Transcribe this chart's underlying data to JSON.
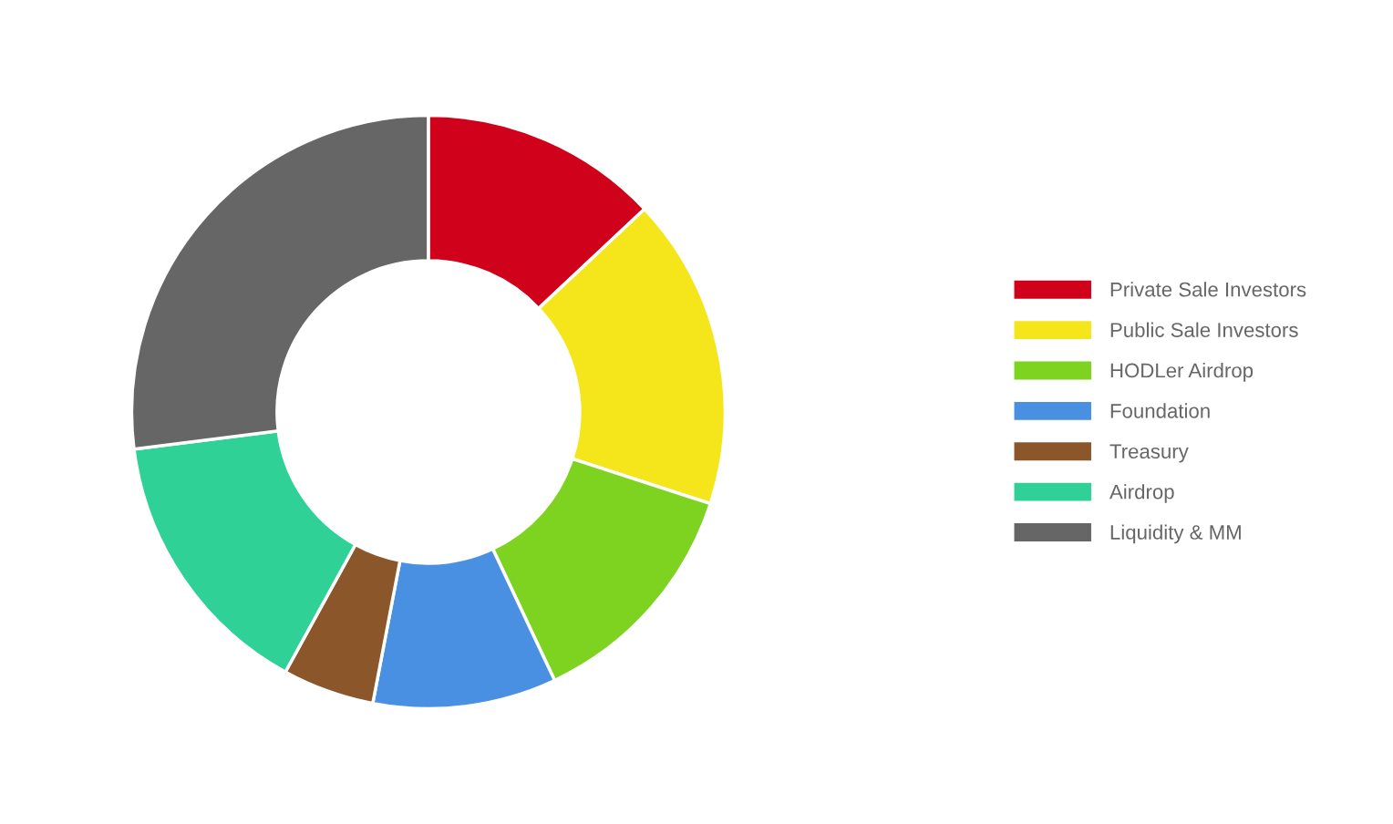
{
  "chart_data": {
    "type": "donut",
    "categories": [
      "Private Sale Investors",
      "Public Sale Investors",
      "HODLer Airdrop",
      "Foundation",
      "Treasury",
      "Airdrop",
      "Liquidity & MM"
    ],
    "values": [
      13,
      17,
      13,
      10,
      5,
      15,
      27
    ],
    "colors": [
      "#d0021b",
      "#f5e61b",
      "#7ed321",
      "#4a90e2",
      "#8b572a",
      "#2fd196",
      "#666666"
    ],
    "legend": "right"
  }
}
